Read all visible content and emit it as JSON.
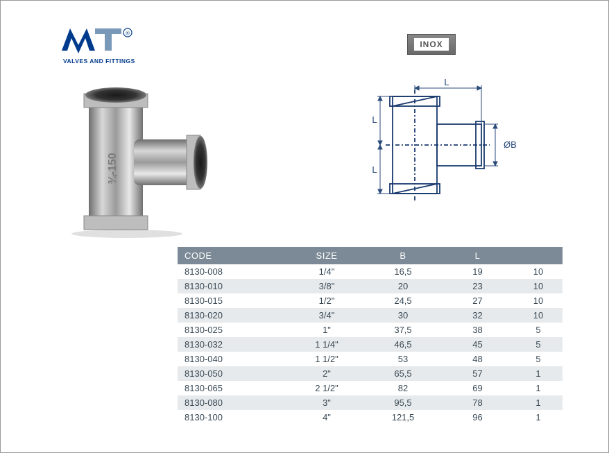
{
  "brand": {
    "tagline": "VALVES AND FITTINGS",
    "logo_color_primary": "#003a8c",
    "logo_color_secondary": "#7a99b8",
    "registered_mark": "®"
  },
  "badge": {
    "label": "INOX",
    "bg_color": "#777777",
    "text_color": "#555555"
  },
  "diagram": {
    "labels": {
      "L": "L",
      "diameter_B": "ØB"
    },
    "outline_color": "#1a3a6e",
    "dimension_color": "#2a4a7a"
  },
  "table": {
    "header_bg": "#7b8a96",
    "header_fg": "#ffffff",
    "stripe_bg": "#e7eaec",
    "text_color": "#3a4a56",
    "columns": [
      "CODE",
      "SIZE",
      "B",
      "L",
      ""
    ],
    "rows": [
      [
        "8130-008",
        "1/4\"",
        "16,5",
        "19",
        "10"
      ],
      [
        "8130-010",
        "3/8\"",
        "20",
        "23",
        "10"
      ],
      [
        "8130-015",
        "1/2\"",
        "24,5",
        "27",
        "10"
      ],
      [
        "8130-020",
        "3/4\"",
        "30",
        "32",
        "10"
      ],
      [
        "8130-025",
        "1\"",
        "37,5",
        "38",
        "5"
      ],
      [
        "8130-032",
        "1 1/4\"",
        "46,5",
        "45",
        "5"
      ],
      [
        "8130-040",
        "1 1/2\"",
        "53",
        "48",
        "5"
      ],
      [
        "8130-050",
        "2\"",
        "65,5",
        "57",
        "1"
      ],
      [
        "8130-065",
        "2 1/2\"",
        "82",
        "69",
        "1"
      ],
      [
        "8130-080",
        "3\"",
        "95,5",
        "78",
        "1"
      ],
      [
        "8130-100",
        "4\"",
        "121,5",
        "96",
        "1"
      ]
    ]
  }
}
